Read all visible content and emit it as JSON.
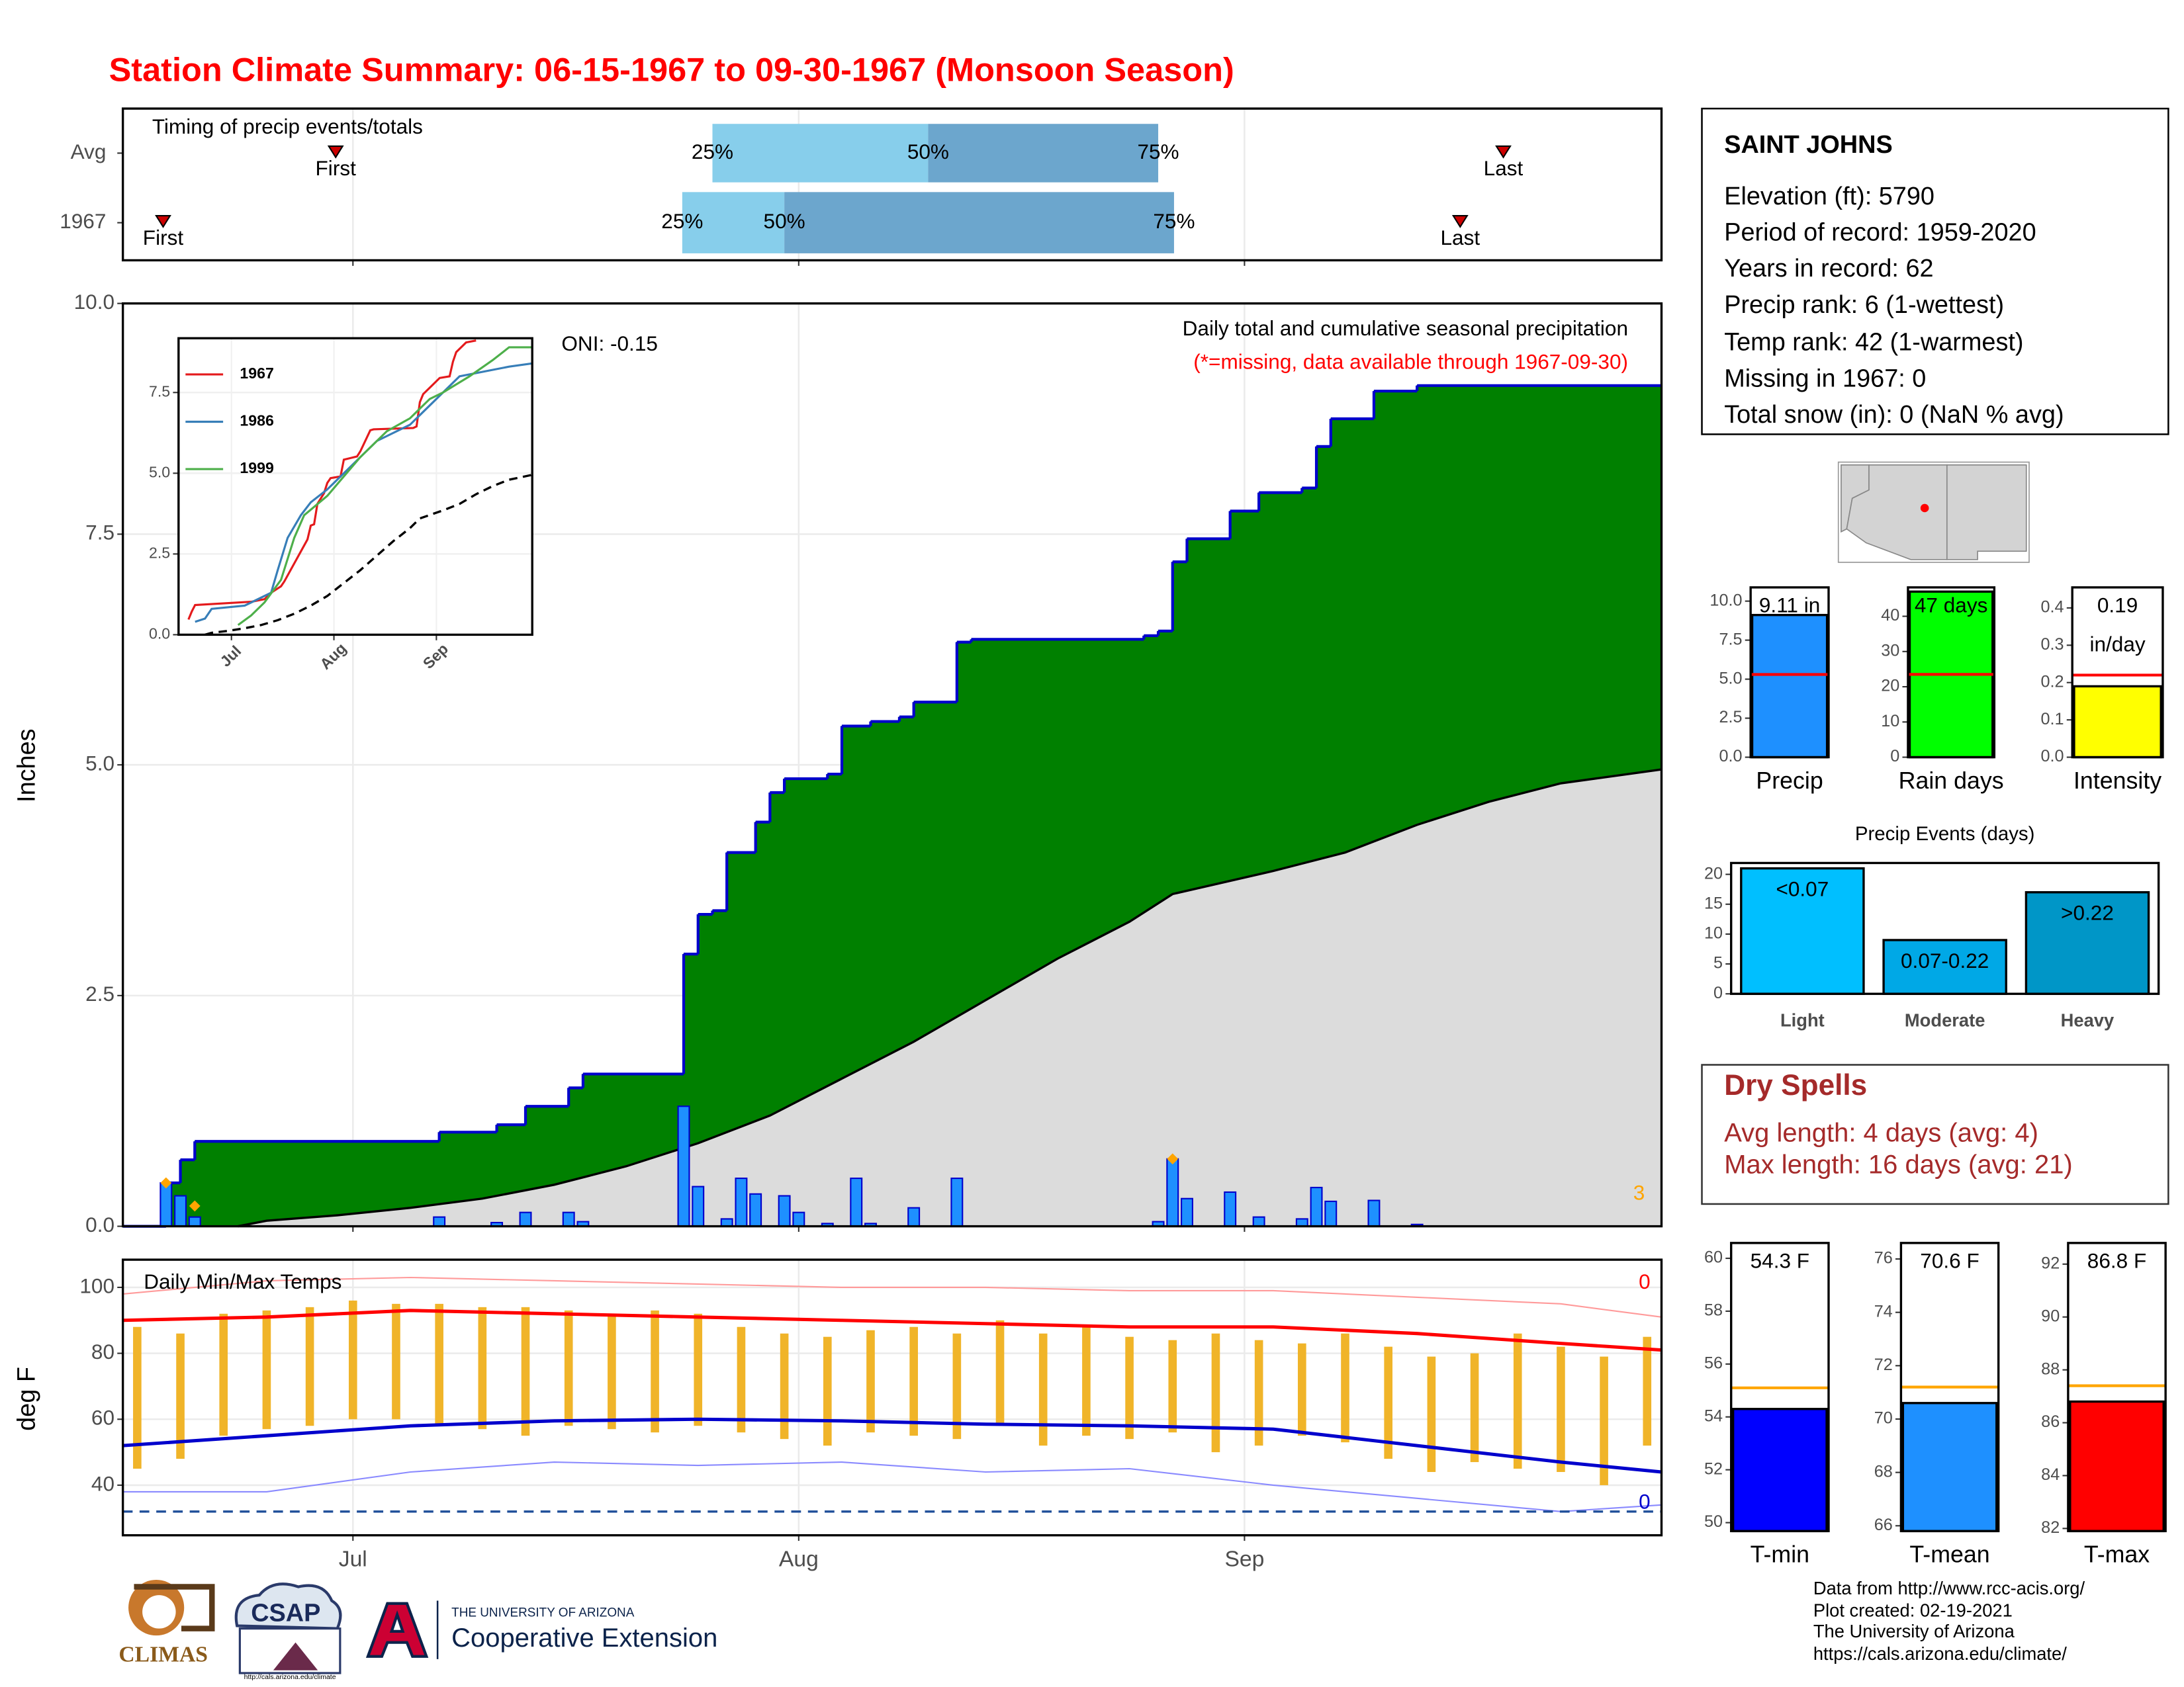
{
  "title": "Station Climate Summary: 06-15-1967 to 09-30-1967 (Monsoon Season)",
  "station": {
    "name": "SAINT JOHNS",
    "lines": [
      "Elevation (ft): 5790",
      "Period of record: 1959-2020",
      "Years in record: 62",
      "Precip rank: 6 (1-wettest)",
      "Temp rank: 42 (1-warmest)",
      "Missing in 1967: 0",
      "Total snow (in): 0 (NaN % avg)"
    ]
  },
  "dry_spells": {
    "title": "Dry Spells",
    "lines": [
      "Avg length: 4 days (avg: 4)",
      "Max length: 16 days (avg: 21)"
    ]
  },
  "footer": [
    "Data from http://www.rcc-acis.org/",
    "Plot created: 02-19-2021",
    "The University of Arizona",
    "https://cals.arizona.edu/climate/"
  ],
  "logos": {
    "climas": "CLIMAS",
    "csap": "CSAP",
    "csap_url": "http://cals.arizona.edu/climate",
    "ua": "THE UNIVERSITY OF ARIZONA",
    "extension": "Cooperative Extension"
  },
  "chart_data": [
    {
      "type": "timeline",
      "title": "Timing of precip events/totals",
      "xlim": [
        0,
        107
      ],
      "rows": [
        {
          "name": "Avg",
          "first": 14.8,
          "q25": 41,
          "q50": 56,
          "q75": 72,
          "last": 96
        },
        {
          "name": "1967",
          "first": 2.8,
          "q25": 38.9,
          "q50": 46,
          "q75": 73.1,
          "last": 93
        }
      ],
      "labels": {
        "first": "First",
        "q25": "25%",
        "q50": "50%",
        "q75": "75%",
        "last": "Last"
      },
      "colors": {
        "lower": "#87ceeb",
        "upper": "#6ca6cd",
        "marker": "#cc0000"
      }
    },
    {
      "type": "area",
      "title": "Daily total and cumulative seasonal precipitation",
      "subtitle": "(*=missing, data available through 1967-09-30)",
      "annotation": "ONI: -0.15",
      "missing_count": 3,
      "ylabel": "Inches",
      "xlim": [
        0,
        107
      ],
      "ylim": [
        0,
        10
      ],
      "yticks": [
        {
          "value": 0,
          "label": "0.0"
        },
        2.5,
        {
          "value": 5,
          "label": "5.0"
        },
        7.5,
        {
          "value": 10,
          "label": "10.0"
        }
      ],
      "grid": true,
      "cumulative": {
        "color": "#008000",
        "line": "#0000cc",
        "x": [
          3,
          4,
          5,
          22,
          26,
          28,
          31,
          32,
          39,
          40,
          41,
          42,
          44,
          45,
          46,
          49,
          50,
          52,
          54,
          55,
          58,
          59,
          71,
          72,
          73,
          74,
          77,
          79,
          82,
          83,
          84,
          87,
          90
        ],
        "values": [
          0.47,
          0.72,
          0.92,
          1.02,
          1.1,
          1.3,
          1.5,
          1.65,
          2.95,
          3.38,
          3.42,
          4.05,
          4.38,
          4.7,
          4.85,
          4.9,
          5.42,
          5.47,
          5.52,
          5.68,
          6.33,
          6.36,
          6.4,
          6.45,
          7.2,
          7.45,
          7.75,
          7.95,
          8.0,
          8.45,
          8.75,
          9.05,
          9.11
        ]
      },
      "average": {
        "color": "#dcdcdc",
        "line": "#000000",
        "x": [
          8,
          10,
          15,
          20,
          25,
          30,
          35,
          40,
          45,
          50,
          55,
          60,
          65,
          70,
          73,
          80,
          85,
          90,
          95,
          100,
          107
        ],
        "values": [
          0,
          0.06,
          0.12,
          0.2,
          0.3,
          0.45,
          0.65,
          0.9,
          1.2,
          1.6,
          2.0,
          2.45,
          2.9,
          3.3,
          3.6,
          3.85,
          4.05,
          4.35,
          4.6,
          4.8,
          4.95
        ]
      },
      "daily": {
        "color": "#1e90ff",
        "line": "#0000cc",
        "x": [
          3,
          4,
          5,
          22,
          26,
          28,
          31,
          32,
          39,
          40,
          42,
          43,
          44,
          46,
          47,
          49,
          51,
          52,
          55,
          58,
          72,
          73,
          74,
          77,
          79,
          82,
          83,
          84,
          87,
          90
        ],
        "values": [
          0.47,
          0.33,
          0.1,
          0.1,
          0.04,
          0.15,
          0.15,
          0.05,
          1.3,
          0.43,
          0.08,
          0.52,
          0.35,
          0.33,
          0.15,
          0.03,
          0.52,
          0.03,
          0.2,
          0.52,
          0.05,
          0.73,
          0.3,
          0.37,
          0.1,
          0.08,
          0.42,
          0.27,
          0.28,
          0.02
        ]
      },
      "flags": {
        "color": "#ffa500",
        "x": [
          3,
          5,
          73
        ],
        "values": [
          0.47,
          0.22,
          0.73
        ]
      }
    },
    {
      "type": "line",
      "xlim": [
        0,
        107
      ],
      "ylim": [
        0,
        9.18
      ],
      "xticks": [
        {
          "value": 16,
          "label": "Jul"
        },
        {
          "value": 47,
          "label": "Aug"
        },
        {
          "value": 78,
          "label": "Sep"
        }
      ],
      "yticks": [
        {
          "value": 0,
          "label": "0.0"
        },
        2.5,
        {
          "value": 5,
          "label": "5.0"
        },
        7.5
      ],
      "grid": true,
      "series": [
        {
          "name": "1967",
          "color": "#e41a1c"
        },
        {
          "name": "1986",
          "color": "#377eb8",
          "x": [
            5,
            8,
            10,
            20,
            28,
            30,
            33,
            37,
            40,
            45,
            50,
            55,
            60,
            70,
            75,
            85,
            100,
            107
          ],
          "values": [
            0.4,
            0.5,
            0.8,
            0.9,
            1.3,
            2.0,
            3.0,
            3.7,
            4.1,
            4.5,
            5.0,
            5.5,
            6.0,
            6.5,
            7.0,
            8.0,
            8.3,
            8.4
          ]
        },
        {
          "name": "1999",
          "color": "#4daf4a",
          "x": [
            18,
            22,
            26,
            31,
            35,
            38,
            45,
            55,
            63,
            70,
            76,
            80,
            88,
            95,
            100,
            107
          ],
          "values": [
            0.3,
            0.6,
            1.0,
            1.7,
            3.0,
            3.7,
            4.3,
            5.5,
            6.3,
            6.7,
            7.3,
            7.5,
            8.0,
            8.5,
            8.9,
            8.9
          ]
        }
      ]
    },
    {
      "type": "range",
      "title": "Daily Min/Max Temps",
      "ylabel": "deg F",
      "xlim": [
        0,
        107
      ],
      "xticks": [
        {
          "value": 16,
          "label": "Jul"
        },
        {
          "value": 47,
          "label": "Aug"
        },
        {
          "value": 78,
          "label": "Sep"
        }
      ],
      "ylim": [
        24.8,
        108.4
      ],
      "yticks": [
        40,
        60,
        80,
        100
      ],
      "grid": true,
      "daily": {
        "color": "#f0b429",
        "x": [
          1,
          4,
          7,
          10,
          13,
          16,
          19,
          22,
          25,
          28,
          31,
          34,
          37,
          40,
          43,
          46,
          49,
          52,
          55,
          58,
          61,
          64,
          67,
          70,
          73,
          76,
          79,
          82,
          85,
          88,
          91,
          94,
          97,
          100,
          103,
          106
        ],
        "low": [
          45,
          48,
          55,
          57,
          58,
          60,
          60,
          58,
          57,
          55,
          58,
          57,
          56,
          58,
          56,
          54,
          52,
          56,
          55,
          54,
          58,
          52,
          55,
          54,
          56,
          50,
          52,
          55,
          53,
          48,
          44,
          47,
          45,
          44,
          40,
          52
        ],
        "high": [
          88,
          86,
          92,
          93,
          94,
          96,
          95,
          95,
          94,
          94,
          93,
          92,
          93,
          92,
          88,
          86,
          85,
          87,
          88,
          86,
          90,
          86,
          88,
          85,
          84,
          86,
          84,
          83,
          86,
          82,
          79,
          80,
          86,
          82,
          79,
          85
        ]
      },
      "lines_x": [
        0,
        10,
        20,
        30,
        40,
        50,
        60,
        70,
        80,
        90,
        100,
        107
      ],
      "avg_high": {
        "color": "#ff0000",
        "values": [
          90,
          91,
          93,
          92,
          91,
          90,
          89,
          88,
          88,
          86,
          83,
          81
        ]
      },
      "avg_low": {
        "color": "#0000cc",
        "values": [
          52,
          55,
          58,
          59.5,
          60,
          59.5,
          58.5,
          58,
          57,
          52,
          47,
          44
        ]
      },
      "record_high": {
        "color": "#ff9a9a",
        "values": [
          98,
          102,
          103,
          102,
          101,
          100,
          100,
          99,
          99,
          97,
          95,
          91
        ]
      },
      "record_low": {
        "color": "#8a8aff",
        "values": [
          38,
          38,
          44,
          47,
          46,
          47,
          44,
          45,
          40,
          36,
          32,
          34
        ]
      },
      "freeze": {
        "value": 32,
        "color": "#1f4e99"
      },
      "record_high_count": 0,
      "record_low_count": 0
    },
    {
      "type": "bar",
      "categories": [
        "Precip"
      ],
      "values": [
        9.11
      ],
      "value_labels": [
        "9.11 in"
      ],
      "color": "#1e90ff",
      "average": 5.3,
      "avg_color": "#ff0000",
      "ylim": [
        0,
        10.88
      ],
      "yticks": [
        {
          "value": 0,
          "label": "0.0"
        },
        2.5,
        {
          "value": 5,
          "label": "5.0"
        },
        7.5,
        {
          "value": 10,
          "label": "10.0"
        }
      ]
    },
    {
      "type": "bar",
      "categories": [
        "Rain days"
      ],
      "values": [
        47
      ],
      "value_labels": [
        "47 days"
      ],
      "color": "#00ff00",
      "average": 23.5,
      "avg_color": "#ff0000",
      "ylim": [
        0,
        48.2
      ],
      "yticks": [
        0,
        10,
        20,
        30,
        40
      ]
    },
    {
      "type": "bar",
      "categories": [
        "Intensity"
      ],
      "values": [
        0.19
      ],
      "value_labels": [
        "0.19"
      ],
      "unit": "in/day",
      "color": "#ffff00",
      "average": 0.22,
      "avg_color": "#ff0000",
      "ylim": [
        0,
        0.455
      ],
      "yticks": [
        {
          "value": 0,
          "label": "0.0"
        },
        0.1,
        0.2,
        0.3,
        0.4
      ]
    },
    {
      "type": "bar",
      "title": "Precip Events (days)",
      "categories": [
        "Light",
        "Moderate",
        "Heavy"
      ],
      "values": [
        21,
        9,
        17
      ],
      "thresholds": [
        "<0.07",
        "0.07-0.22",
        ">0.22"
      ],
      "colors": [
        "#00bfff",
        "#00a8e6",
        "#0096c7"
      ],
      "ylim": [
        0,
        21.9
      ],
      "yticks": [
        0,
        5,
        10,
        15,
        20
      ]
    },
    {
      "type": "bar",
      "categories": [
        "T-min"
      ],
      "values": [
        54.3
      ],
      "value_labels": [
        "54.3 F"
      ],
      "color": "#0000ff",
      "average": 55.1,
      "avg_color": "#ffa500",
      "ylim": [
        49.68,
        60.58
      ],
      "yticks": [
        50,
        52,
        54,
        56,
        58,
        60
      ]
    },
    {
      "type": "bar",
      "categories": [
        "T-mean"
      ],
      "values": [
        70.6
      ],
      "value_labels": [
        "70.6 F"
      ],
      "color": "#1e90ff",
      "average": 71.2,
      "avg_color": "#ffa500",
      "ylim": [
        65.8,
        76.6
      ],
      "yticks": [
        66,
        68,
        70,
        72,
        74,
        76
      ]
    },
    {
      "type": "bar",
      "categories": [
        "T-max"
      ],
      "values": [
        86.8
      ],
      "value_labels": [
        "86.8 F"
      ],
      "color": "#ff0000",
      "average": 87.4,
      "avg_color": "#ffa500",
      "ylim": [
        81.9,
        92.8
      ],
      "yticks": [
        82,
        84,
        86,
        88,
        90,
        92
      ]
    }
  ]
}
